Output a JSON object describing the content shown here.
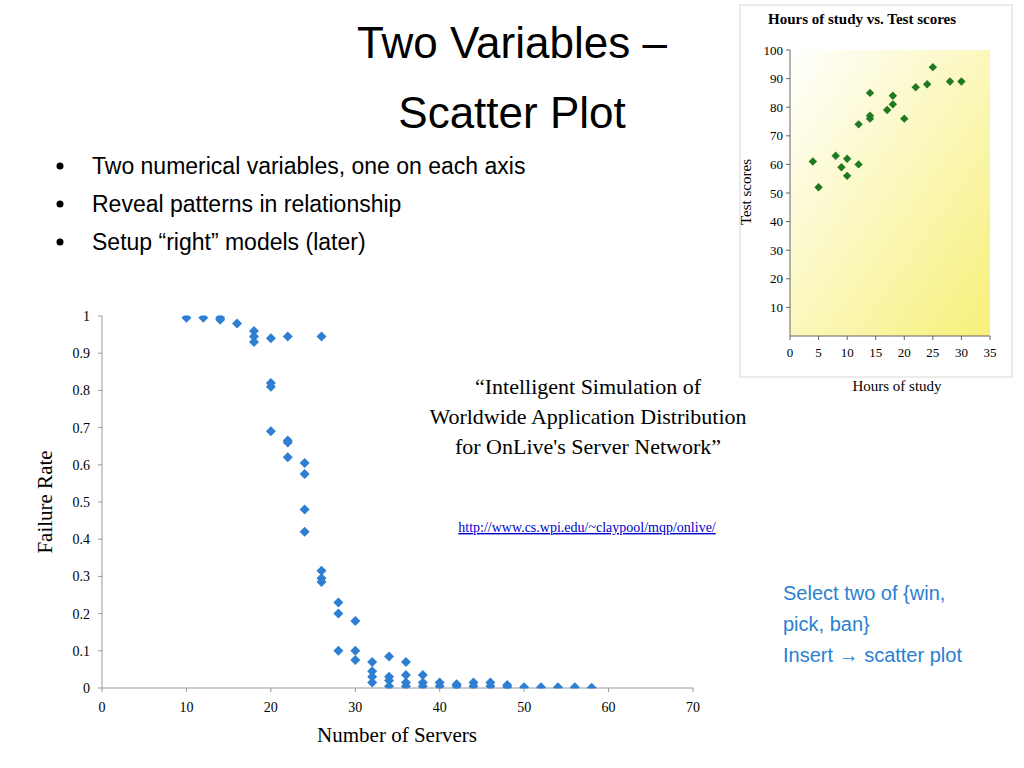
{
  "slide": {
    "title": [
      "Two Variables –",
      "Scatter Plot"
    ],
    "bullets": [
      "Two numerical variables, one on each axis",
      "Reveal patterns in relationship",
      "Setup “right” models (later)"
    ],
    "citation": [
      "“Intelligent Simulation of",
      "Worldwide Application Distribution",
      "for OnLive's Server Network”"
    ],
    "url": "http://www.cs.wpi.edu/~claypool/mqp/onlive/",
    "instructions": [
      "Select two of {win,",
      "pick, ban}",
      "Insert → scatter plot"
    ]
  },
  "chart_data": [
    {
      "type": "scatter",
      "title": "Hours of study vs. Test scores",
      "x_label": "Hours of study",
      "y_label": "Test scores",
      "x": [
        4,
        5,
        8,
        9,
        10,
        10,
        12,
        12,
        14,
        14,
        14,
        17,
        18,
        18,
        20,
        22,
        24,
        25,
        28,
        30
      ],
      "values": [
        61,
        52,
        63,
        59,
        56,
        62,
        60,
        74,
        76,
        77,
        85,
        79,
        81,
        84,
        76,
        87,
        88,
        94,
        89,
        89
      ],
      "xlim": [
        0,
        35
      ],
      "xticks": [
        0,
        5,
        10,
        15,
        20,
        25,
        30,
        35
      ],
      "ylim": [
        0,
        100
      ],
      "yticks": [
        10,
        20,
        30,
        40,
        50,
        60,
        70,
        80,
        90,
        100
      ],
      "color": "#1f7a1f",
      "marker": "diamond",
      "grid": false
    },
    {
      "type": "scatter",
      "x_label": "Number of Servers",
      "y_label": "Failure Rate",
      "x": [
        10,
        12,
        14,
        14,
        16,
        18,
        18,
        18,
        20,
        20,
        20,
        20,
        22,
        22,
        22,
        22,
        24,
        24,
        24,
        24,
        26,
        26,
        26,
        26,
        28,
        28,
        28,
        30,
        30,
        30,
        32,
        32,
        32,
        32,
        34,
        34,
        34,
        34,
        36,
        36,
        36,
        36,
        38,
        38,
        38,
        40,
        40,
        42,
        42,
        44,
        44,
        46,
        46,
        48,
        48,
        50,
        52,
        54,
        56,
        58
      ],
      "values": [
        0.995,
        0.995,
        0.99,
        0.995,
        0.98,
        0.96,
        0.945,
        0.93,
        0.94,
        0.82,
        0.81,
        0.69,
        0.945,
        0.665,
        0.66,
        0.62,
        0.605,
        0.575,
        0.48,
        0.42,
        0.945,
        0.315,
        0.295,
        0.285,
        0.23,
        0.2,
        0.1,
        0.18,
        0.1,
        0.075,
        0.07,
        0.045,
        0.03,
        0.015,
        0.085,
        0.03,
        0.02,
        0.005,
        0.07,
        0.035,
        0.015,
        0.005,
        0.035,
        0.015,
        0.005,
        0.015,
        0.005,
        0.01,
        0.005,
        0.015,
        0.005,
        0.015,
        0.005,
        0.008,
        0.003,
        0.002,
        0.002,
        0.002,
        0.002,
        0.001
      ],
      "xlim": [
        0,
        70
      ],
      "xticks": [
        0,
        10,
        20,
        30,
        40,
        50,
        60,
        70
      ],
      "ylim": [
        0,
        1
      ],
      "yticks": [
        0,
        0.1,
        0.2,
        0.3,
        0.4,
        0.5,
        0.6,
        0.7,
        0.8,
        0.9,
        1
      ],
      "color": "#2e7fd2",
      "marker": "diamond",
      "grid": false
    }
  ]
}
